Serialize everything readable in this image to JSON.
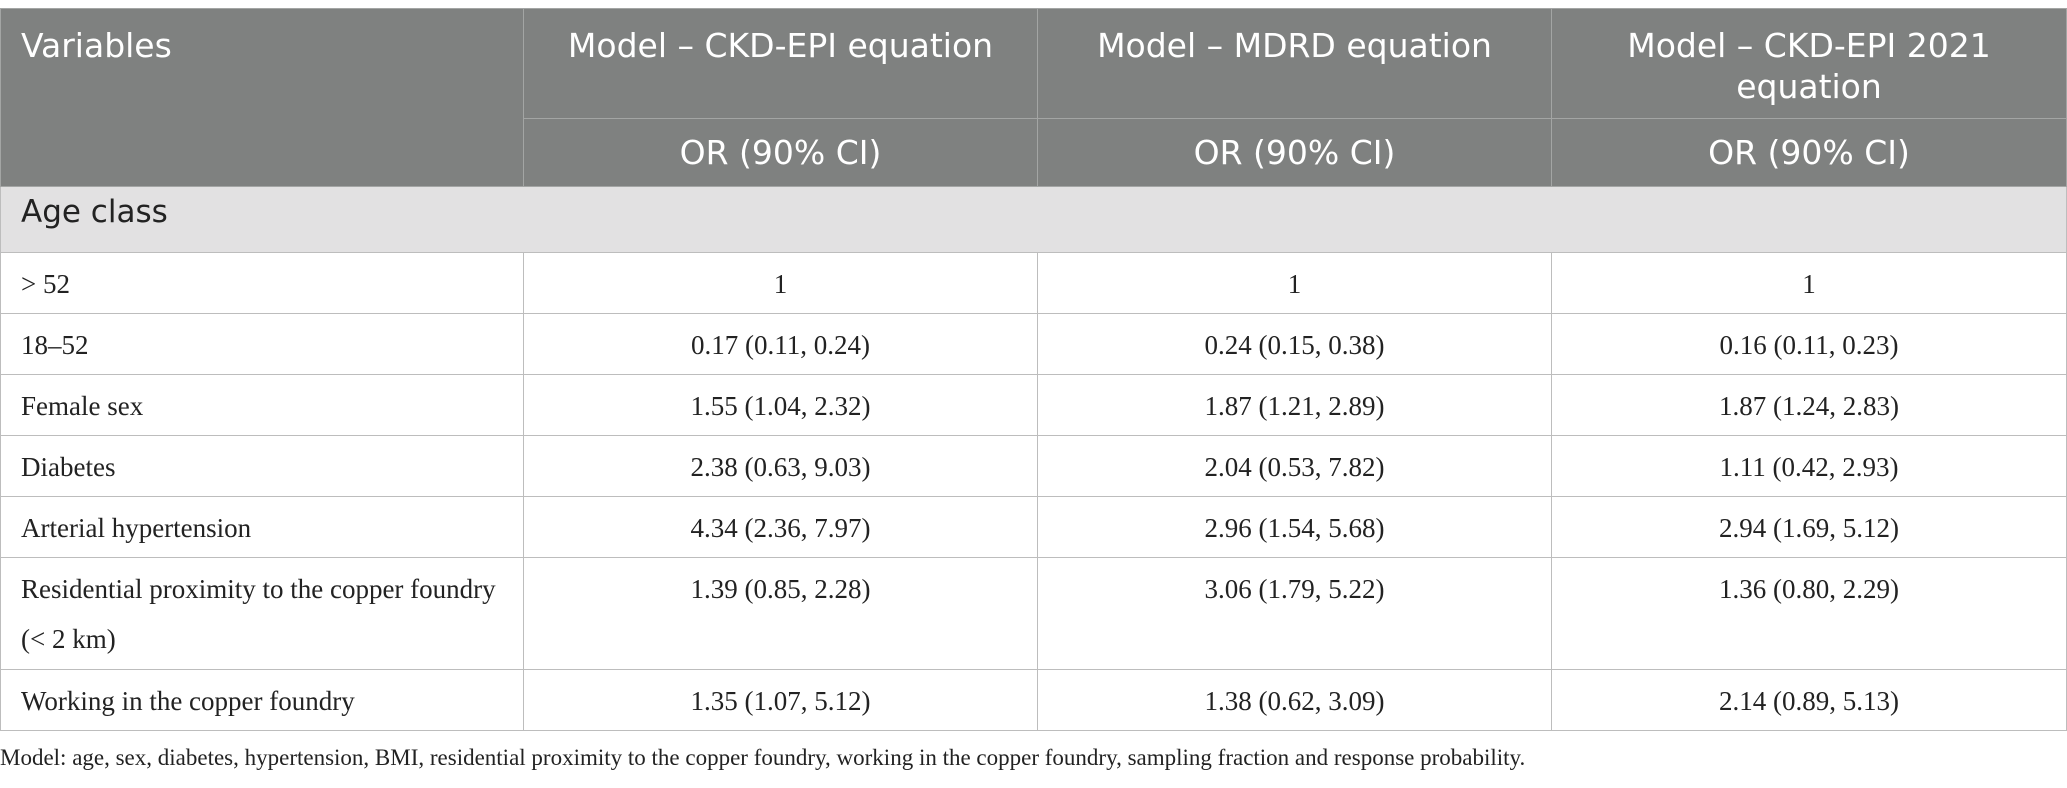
{
  "header": {
    "variables": "Variables",
    "columns": [
      "Model – CKD-EPI equation",
      "Model – MDRD equation",
      "Model – CKD-EPI 2021 equation"
    ],
    "subheaders": [
      "OR (90% CI)",
      "OR (90% CI)",
      "OR (90% CI)"
    ]
  },
  "section": "Age class",
  "rows": [
    {
      "label": "> 52",
      "values": [
        "1",
        "1",
        "1"
      ]
    },
    {
      "label": "18–52",
      "values": [
        "0.17 (0.11, 0.24)",
        "0.24 (0.15, 0.38)",
        "0.16 (0.11, 0.23)"
      ]
    },
    {
      "label": "Female sex",
      "values": [
        "1.55 (1.04, 2.32)",
        "1.87 (1.21, 2.89)",
        "1.87 (1.24, 2.83)"
      ]
    },
    {
      "label": "Diabetes",
      "values": [
        "2.38 (0.63, 9.03)",
        "2.04 (0.53, 7.82)",
        "1.11 (0.42, 2.93)"
      ]
    },
    {
      "label": "Arterial hypertension",
      "values": [
        "4.34 (2.36, 7.97)",
        "2.96 (1.54, 5.68)",
        "2.94 (1.69, 5.12)"
      ]
    },
    {
      "label": "Residential proximity to the copper foundry (< 2 km)",
      "values": [
        "1.39 (0.85, 2.28)",
        "3.06 (1.79, 5.22)",
        "1.36 (0.80, 2.29)"
      ]
    },
    {
      "label": "Working in the copper foundry",
      "values": [
        "1.35 (1.07, 5.12)",
        "1.38 (0.62, 3.09)",
        "2.14 (0.89, 5.13)"
      ]
    }
  ],
  "footnote": "Model: age, sex, diabetes, hypertension, BMI, residential proximity to the copper foundry, working in the copper foundry, sampling fraction and response probability."
}
